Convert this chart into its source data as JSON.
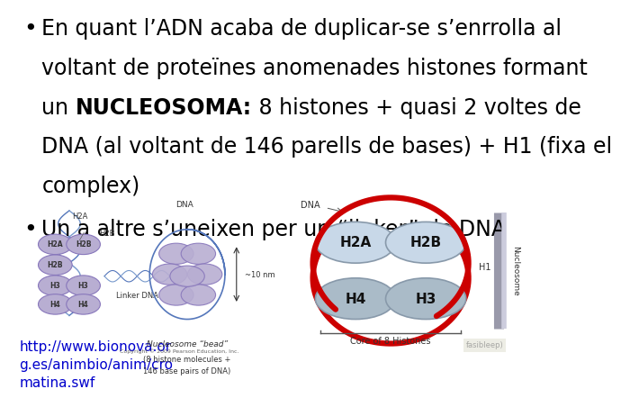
{
  "background_color": "#ffffff",
  "bullet1_line1": "En quant l’ADN acaba de duplicar-se s’enrrolla al",
  "bullet1_line2": "voltant de proteïnes anomenades histones formant",
  "bullet1_line3": "un NUCLEOSOMA: 8 histones + quasi 2 voltes de",
  "bullet1_line4": "DNA (al voltant de 146 parells de bases) + H1 (fixa el",
  "bullet1_line5": "complex)",
  "bullet2": "Un a altre s’uneixen per un “linker” de DNA",
  "link_text": "http://www.bionova.or\ng.es/animbio/anim/cro\nmatina.swf",
  "link_color": "#0000cc",
  "text_color": "#000000",
  "bullet_fontsize": 17,
  "link_fontsize": 11
}
